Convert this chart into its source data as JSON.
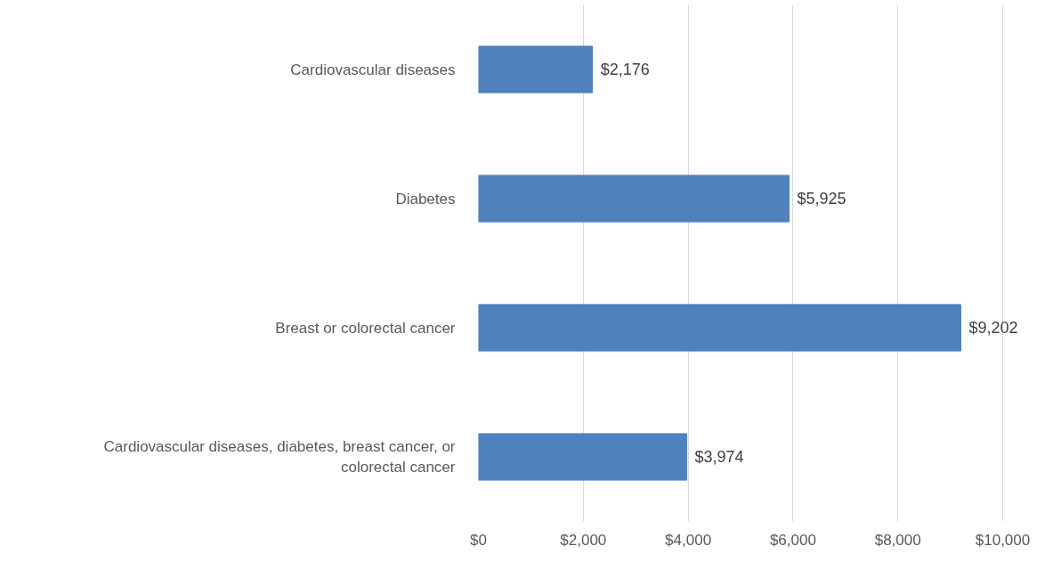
{
  "chart_data": {
    "type": "bar",
    "orientation": "horizontal",
    "categories": [
      "Cardiovascular diseases",
      "Diabetes",
      "Breast or colorectal cancer",
      "Cardiovascular diseases, diabetes, breast cancer, or colorectal cancer"
    ],
    "values": [
      2176,
      5925,
      9202,
      3974
    ],
    "value_labels": [
      "$2,176",
      "$5,925",
      "$9,202",
      "$3,974"
    ],
    "color": "#4f81bd",
    "xlim": [
      0,
      10000
    ],
    "xticks": [
      {
        "value": 0,
        "label": "$0"
      },
      {
        "value": 2000,
        "label": "$2,000"
      },
      {
        "value": 4000,
        "label": "$4,000"
      },
      {
        "value": 6000,
        "label": "$6,000"
      },
      {
        "value": 8000,
        "label": "$8,000"
      },
      {
        "value": 10000,
        "label": "$10,000"
      }
    ],
    "grid": "x"
  }
}
